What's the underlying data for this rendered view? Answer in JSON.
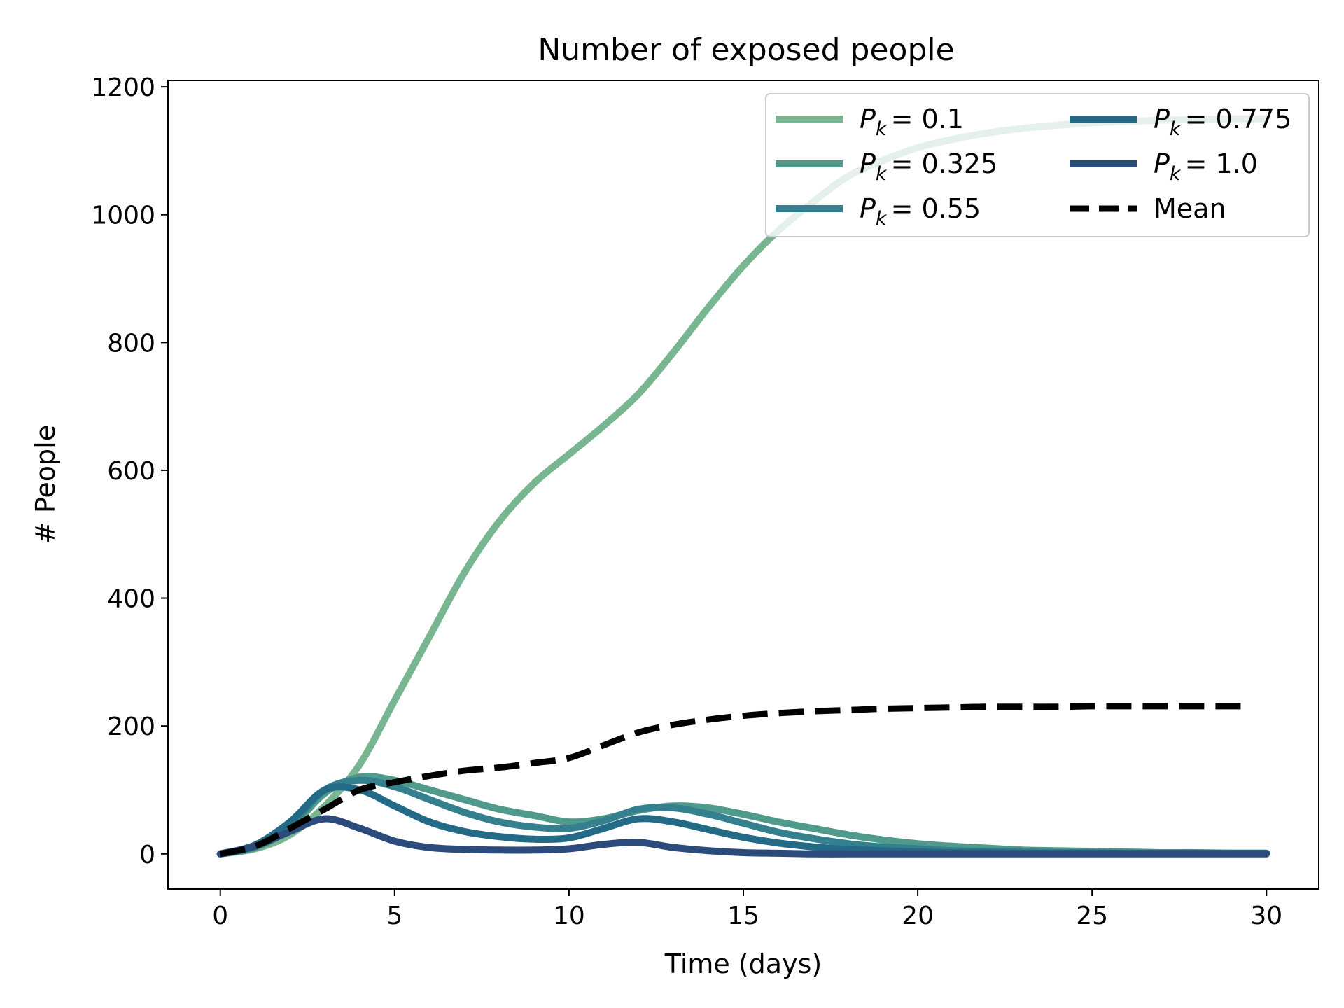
{
  "chart_data": {
    "type": "line",
    "title": "Number of exposed people",
    "xlabel": "Time (days)",
    "ylabel": "# People",
    "xlim": [
      -1.5,
      31.5
    ],
    "ylim": [
      -55,
      1210
    ],
    "xticks": [
      0,
      5,
      10,
      15,
      20,
      25,
      30
    ],
    "yticks": [
      0,
      200,
      400,
      600,
      800,
      1000,
      1200
    ],
    "grid": false,
    "legend": {
      "placement": "top-right",
      "columns": 2
    },
    "series": [
      {
        "name": "P_k = 0.1",
        "label_var": "P",
        "label_sub": "k",
        "label_val": "= 0.1",
        "color": "#78b591",
        "dash": false,
        "x": [
          0,
          1,
          2,
          3,
          4,
          5,
          6,
          7,
          8,
          9,
          10,
          11,
          12,
          13,
          14,
          15,
          16,
          17,
          18,
          19,
          20,
          21,
          22,
          23,
          24,
          25,
          26,
          27,
          28,
          29,
          30
        ],
        "y": [
          0,
          8,
          30,
          75,
          140,
          240,
          340,
          440,
          520,
          580,
          625,
          670,
          720,
          785,
          855,
          920,
          975,
          1020,
          1060,
          1085,
          1105,
          1118,
          1128,
          1135,
          1140,
          1144,
          1146,
          1148,
          1149,
          1150,
          1150
        ]
      },
      {
        "name": "P_k = 0.325",
        "label_var": "P",
        "label_sub": "k",
        "label_val": "= 0.325",
        "color": "#4f9a8a",
        "dash": false,
        "x": [
          0,
          1,
          2,
          3,
          4,
          5,
          6,
          7,
          8,
          9,
          10,
          11,
          12,
          13,
          14,
          15,
          16,
          17,
          18,
          19,
          20,
          21,
          22,
          23,
          24,
          25,
          26,
          27,
          28,
          29,
          30
        ],
        "y": [
          0,
          10,
          40,
          95,
          120,
          115,
          100,
          85,
          70,
          60,
          50,
          55,
          68,
          75,
          72,
          62,
          50,
          40,
          30,
          22,
          16,
          12,
          9,
          6,
          5,
          4,
          3,
          2,
          2,
          1,
          1
        ]
      },
      {
        "name": "P_k = 0.55",
        "label_var": "P",
        "label_sub": "k",
        "label_val": "= 0.55",
        "color": "#35808f",
        "dash": false,
        "x": [
          0,
          1,
          2,
          3,
          4,
          5,
          6,
          7,
          8,
          9,
          10,
          11,
          12,
          13,
          14,
          15,
          16,
          17,
          18,
          19,
          20,
          21,
          22,
          23,
          24,
          25,
          26,
          27,
          28,
          29,
          30
        ],
        "y": [
          0,
          12,
          45,
          100,
          115,
          105,
          85,
          65,
          50,
          42,
          40,
          52,
          70,
          72,
          62,
          48,
          34,
          24,
          16,
          11,
          8,
          5,
          4,
          3,
          2,
          2,
          1,
          1,
          1,
          1,
          1
        ]
      },
      {
        "name": "P_k = 0.775",
        "label_var": "P",
        "label_sub": "k",
        "label_val": "= 0.775",
        "color": "#236a86",
        "dash": false,
        "x": [
          0,
          1,
          2,
          3,
          4,
          5,
          6,
          7,
          8,
          9,
          10,
          11,
          12,
          13,
          14,
          15,
          16,
          17,
          18,
          19,
          20,
          21,
          22,
          23,
          24,
          25,
          26,
          27,
          28,
          29,
          30
        ],
        "y": [
          0,
          14,
          50,
          100,
          100,
          75,
          50,
          35,
          27,
          23,
          25,
          40,
          55,
          50,
          38,
          26,
          17,
          11,
          7,
          5,
          3,
          2,
          2,
          1,
          1,
          1,
          1,
          1,
          1,
          1,
          1
        ]
      },
      {
        "name": "P_k = 1.0",
        "label_var": "P",
        "label_sub": "k",
        "label_val": "= 1.0",
        "color": "#2a4b7c",
        "dash": false,
        "x": [
          0,
          1,
          2,
          3,
          4,
          5,
          6,
          7,
          8,
          9,
          10,
          11,
          12,
          13,
          14,
          15,
          16,
          17,
          18,
          19,
          20,
          21,
          22,
          23,
          24,
          25,
          26,
          27,
          28,
          29,
          30
        ],
        "y": [
          0,
          12,
          35,
          55,
          40,
          20,
          10,
          7,
          6,
          6,
          8,
          15,
          18,
          10,
          5,
          2,
          1,
          0,
          0,
          0,
          0,
          0,
          0,
          0,
          0,
          0,
          0,
          0,
          0,
          0,
          0
        ]
      },
      {
        "name": "Mean",
        "label_plain": "Mean",
        "color": "#000000",
        "dash": true,
        "x": [
          0,
          1,
          2,
          3,
          4,
          5,
          6,
          7,
          8,
          9,
          10,
          11,
          12,
          13,
          14,
          15,
          16,
          17,
          18,
          19,
          20,
          21,
          22,
          23,
          24,
          25,
          26,
          27,
          28,
          29,
          29.5
        ],
        "y": [
          0,
          12,
          40,
          70,
          100,
          112,
          122,
          130,
          135,
          142,
          150,
          170,
          190,
          202,
          210,
          216,
          220,
          223,
          225,
          227,
          228,
          229,
          230,
          230,
          230,
          231,
          231,
          231,
          231,
          231,
          231
        ]
      }
    ]
  }
}
